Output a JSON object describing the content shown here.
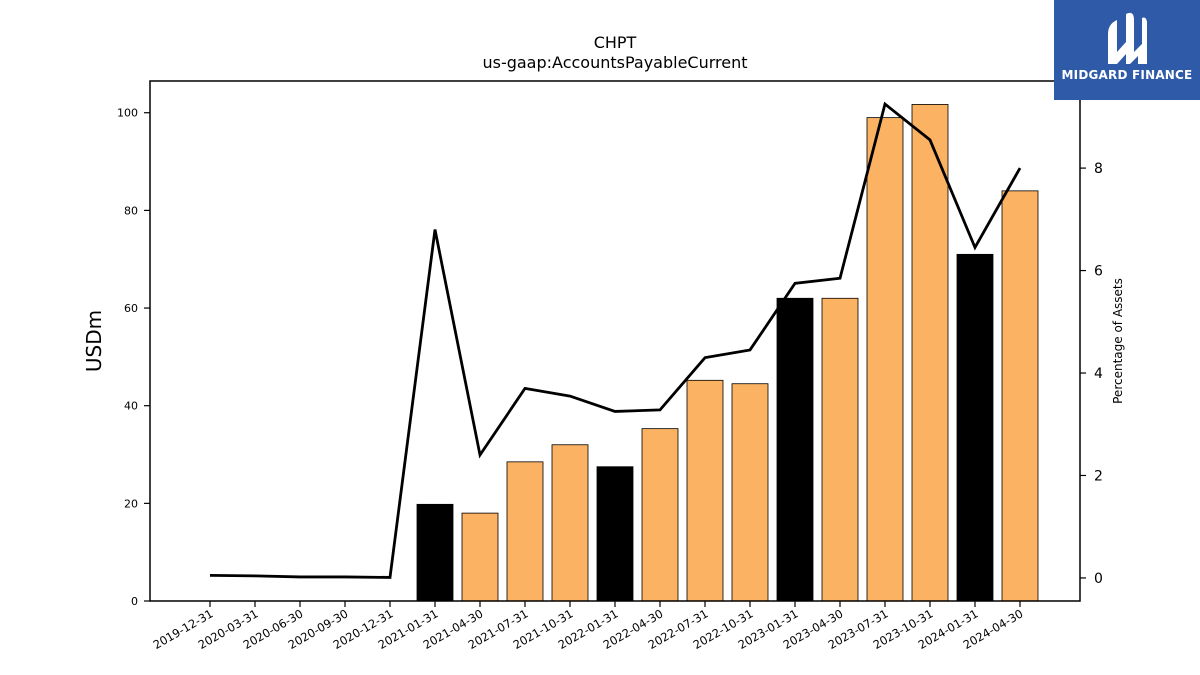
{
  "chart_data": {
    "type": "bar",
    "title": "CHPT",
    "subtitle": "us-gaap:AccountsPayableCurrent",
    "ylabel": "USDm",
    "y2label": "Percentage of Assets",
    "categories": [
      "2019-12-31",
      "2020-03-31",
      "2020-06-30",
      "2020-09-30",
      "2020-12-31",
      "2021-01-31",
      "2021-04-30",
      "2021-07-31",
      "2021-10-31",
      "2022-01-31",
      "2022-04-30",
      "2022-07-31",
      "2022-10-31",
      "2023-01-31",
      "2023-04-30",
      "2023-07-31",
      "2023-10-31",
      "2024-01-31",
      "2024-04-30"
    ],
    "series": [
      {
        "type": "bar",
        "values": [
          0,
          0,
          0,
          0,
          0,
          19.8,
          18.0,
          28.5,
          32.0,
          27.5,
          35.3,
          45.2,
          44.5,
          62.0,
          62.0,
          99.0,
          101.7,
          71.0,
          84.0
        ],
        "colors": [
          "#fbb262",
          "#fbb262",
          "#fbb262",
          "#fbb262",
          "#fbb262",
          "#000000",
          "#fbb262",
          "#fbb262",
          "#fbb262",
          "#000000",
          "#fbb262",
          "#fbb262",
          "#fbb262",
          "#000000",
          "#fbb262",
          "#fbb262",
          "#fbb262",
          "#000000",
          "#fbb262"
        ]
      },
      {
        "type": "line",
        "axis": "right",
        "color": "#000000",
        "values": [
          0.05,
          0.04,
          0.02,
          0.02,
          0.01,
          6.8,
          2.4,
          3.7,
          3.55,
          3.25,
          3.28,
          4.3,
          4.45,
          5.75,
          5.85,
          9.25,
          8.55,
          6.45,
          8.0
        ]
      }
    ],
    "ylim": [
      0,
      106.5
    ],
    "y2lim": [
      -0.45,
      9.7
    ],
    "yticks": [
      0,
      20,
      40,
      60,
      80,
      100
    ],
    "y2ticks": [
      0,
      2,
      4,
      6,
      8
    ],
    "grid": false,
    "legend": "none"
  },
  "logo": {
    "text": "MIDGARD FINANCE",
    "background": "#2f5aa8"
  }
}
